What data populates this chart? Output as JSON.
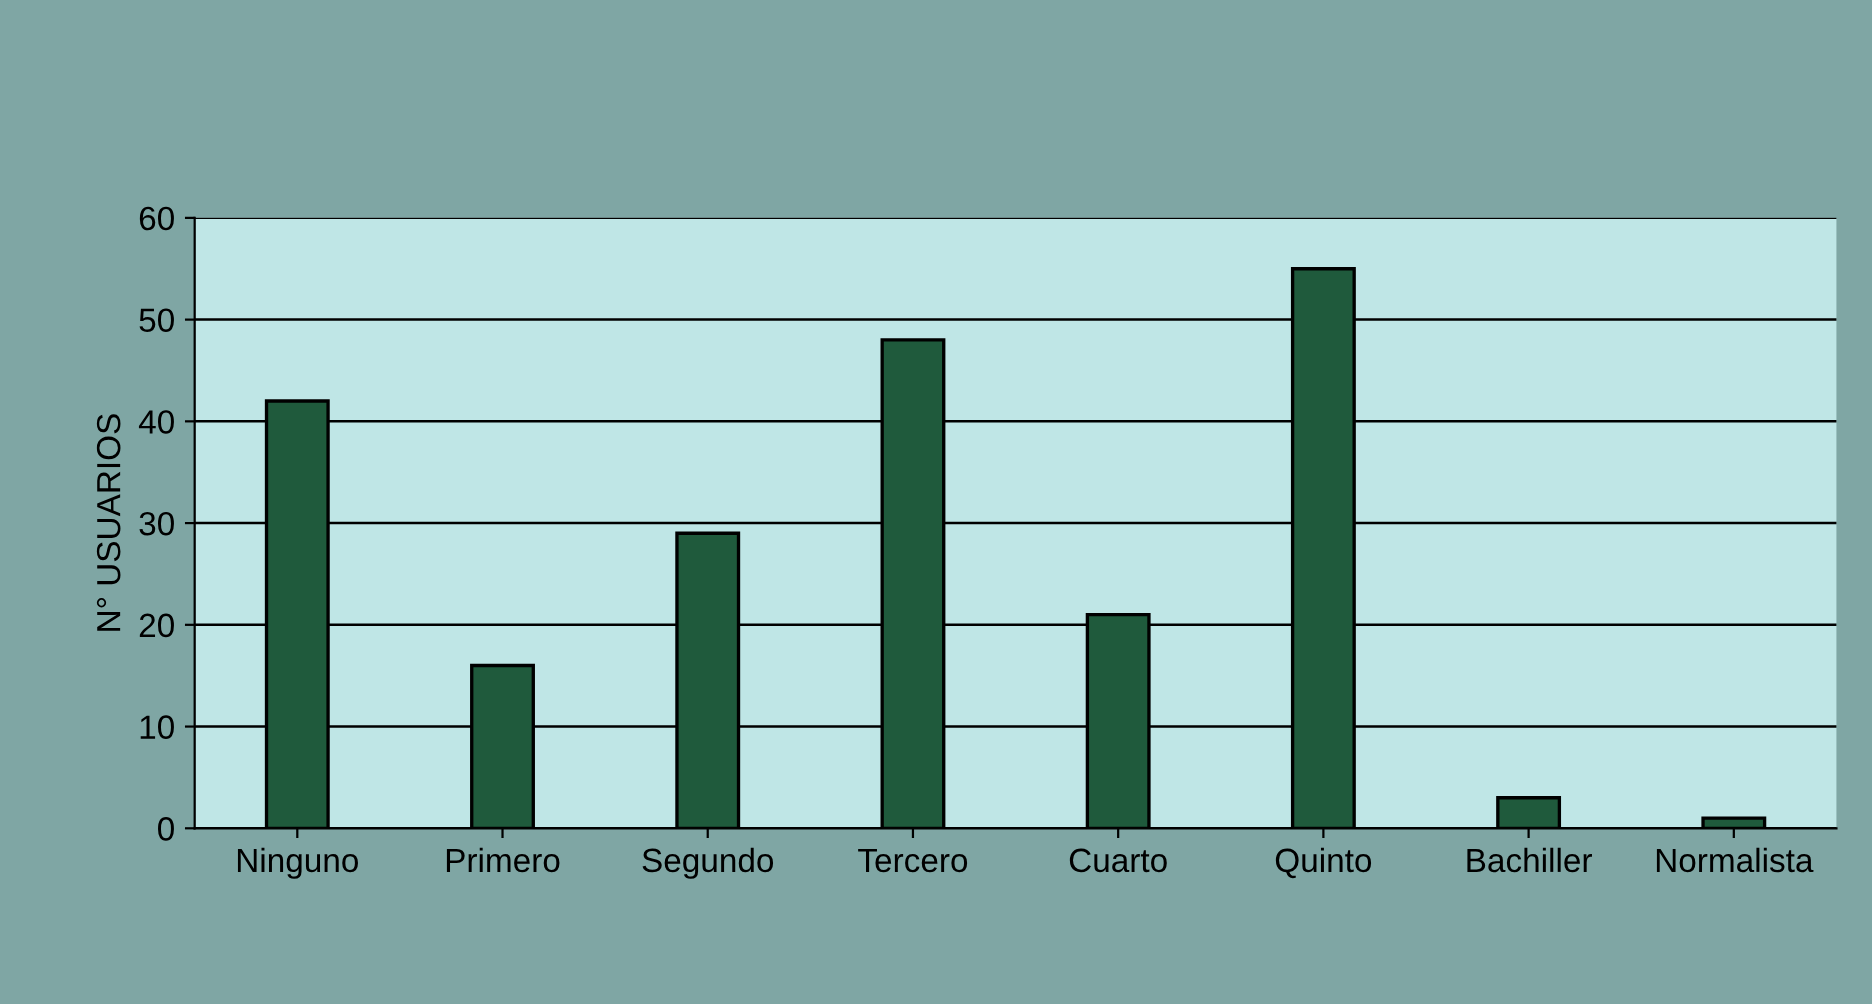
{
  "chart_data": {
    "type": "bar",
    "ylabel": "N° USUARIOS",
    "categories": [
      "Ninguno",
      "Primero",
      "Segundo",
      "Tercero",
      "Cuarto",
      "Quinto",
      "Bachiller",
      "Normalista"
    ],
    "values": [
      42,
      16,
      29,
      48,
      21,
      55,
      3,
      1
    ],
    "color": "#1f5a3c",
    "ylim": [
      0,
      60
    ],
    "yticks": [
      0,
      10,
      20,
      30,
      40,
      50,
      60
    ],
    "grid": "y"
  }
}
